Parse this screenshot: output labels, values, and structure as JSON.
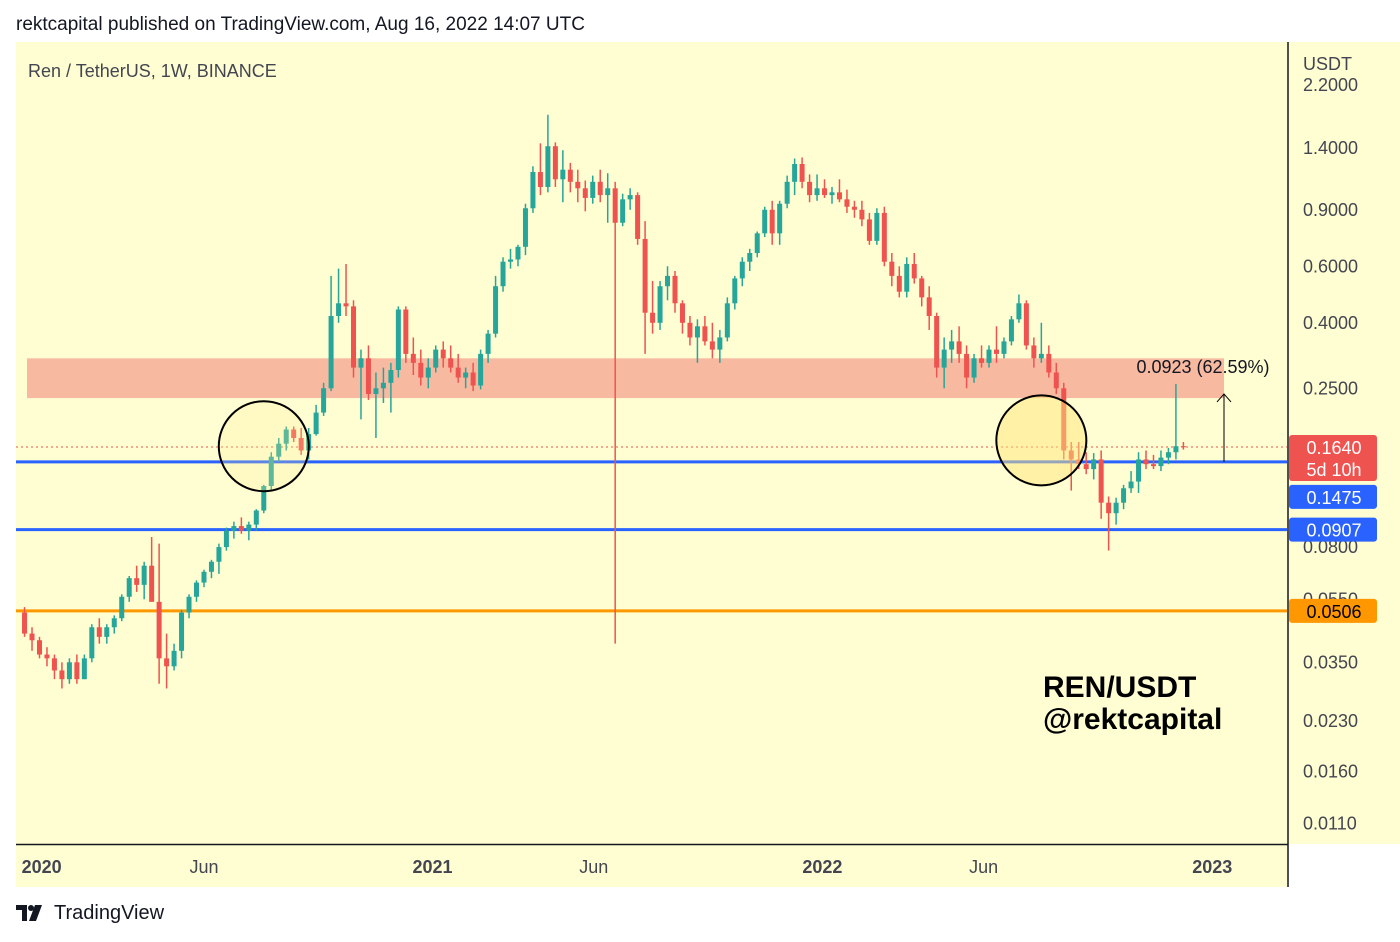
{
  "header": {
    "published": "rektcapital published on TradingView.com, Aug 16, 2022 14:07 UTC"
  },
  "footer": {
    "brand": "TradingView"
  },
  "colors": {
    "background": "#fffdd2",
    "up": "#26a69a",
    "down": "#ef5350",
    "zone": "#f8b9a1",
    "support": "#2962ff",
    "orange": "#ff9800",
    "price_label": "#ef5350"
  },
  "chart_data": {
    "type": "candlestick",
    "symbol_label": "Ren / TetherUS, 1W, BINANCE",
    "currency": "USDT",
    "y_scale": "log",
    "ylim": [
      0.0095,
      3.0
    ],
    "y_ticks": [
      "2.2000",
      "1.4000",
      "0.9000",
      "0.6000",
      "0.4000",
      "0.2500",
      "0.0800",
      "0.0550",
      "0.0350",
      "0.0230",
      "0.0160",
      "0.0110"
    ],
    "x_ticks": [
      {
        "label": "2020",
        "bold": true,
        "date": "2020-01-01"
      },
      {
        "label": "Jun",
        "bold": false,
        "date": "2020-06-01"
      },
      {
        "label": "2021",
        "bold": true,
        "date": "2021-01-01"
      },
      {
        "label": "Jun",
        "bold": false,
        "date": "2021-06-01"
      },
      {
        "label": "2022",
        "bold": true,
        "date": "2022-01-01"
      },
      {
        "label": "Jun",
        "bold": false,
        "date": "2022-06-01"
      },
      {
        "label": "2023",
        "bold": true,
        "date": "2023-01-01"
      }
    ],
    "first_candle_date": "2019-12-16",
    "candles": [
      [
        0.05,
        0.052,
        0.042,
        0.043
      ],
      [
        0.043,
        0.045,
        0.038,
        0.041
      ],
      [
        0.041,
        0.042,
        0.036,
        0.037
      ],
      [
        0.037,
        0.039,
        0.034,
        0.036
      ],
      [
        0.036,
        0.037,
        0.031,
        0.033
      ],
      [
        0.033,
        0.035,
        0.029,
        0.031
      ],
      [
        0.031,
        0.036,
        0.03,
        0.035
      ],
      [
        0.035,
        0.037,
        0.03,
        0.031
      ],
      [
        0.031,
        0.037,
        0.031,
        0.036
      ],
      [
        0.036,
        0.046,
        0.035,
        0.045
      ],
      [
        0.045,
        0.048,
        0.04,
        0.042
      ],
      [
        0.042,
        0.046,
        0.04,
        0.045
      ],
      [
        0.045,
        0.049,
        0.043,
        0.048
      ],
      [
        0.048,
        0.057,
        0.047,
        0.056
      ],
      [
        0.056,
        0.065,
        0.054,
        0.064
      ],
      [
        0.064,
        0.07,
        0.058,
        0.061
      ],
      [
        0.061,
        0.072,
        0.055,
        0.07
      ],
      [
        0.07,
        0.086,
        0.068,
        0.054
      ],
      [
        0.054,
        0.082,
        0.03,
        0.036
      ],
      [
        0.036,
        0.043,
        0.029,
        0.034
      ],
      [
        0.034,
        0.04,
        0.033,
        0.038
      ],
      [
        0.038,
        0.051,
        0.036,
        0.05
      ],
      [
        0.05,
        0.057,
        0.048,
        0.056
      ],
      [
        0.056,
        0.063,
        0.054,
        0.062
      ],
      [
        0.062,
        0.068,
        0.06,
        0.067
      ],
      [
        0.067,
        0.073,
        0.064,
        0.072
      ],
      [
        0.072,
        0.082,
        0.066,
        0.08
      ],
      [
        0.08,
        0.092,
        0.078,
        0.09
      ],
      [
        0.09,
        0.096,
        0.085,
        0.093
      ],
      [
        0.093,
        0.099,
        0.088,
        0.09
      ],
      [
        0.09,
        0.096,
        0.084,
        0.094
      ],
      [
        0.094,
        0.105,
        0.09,
        0.104
      ],
      [
        0.104,
        0.125,
        0.102,
        0.124
      ],
      [
        0.124,
        0.158,
        0.12,
        0.153
      ],
      [
        0.153,
        0.175,
        0.148,
        0.168
      ],
      [
        0.168,
        0.19,
        0.16,
        0.186
      ],
      [
        0.186,
        0.19,
        0.17,
        0.175
      ],
      [
        0.175,
        0.188,
        0.155,
        0.16
      ],
      [
        0.16,
        0.188,
        0.15,
        0.18
      ],
      [
        0.18,
        0.222,
        0.178,
        0.21
      ],
      [
        0.21,
        0.26,
        0.205,
        0.25
      ],
      [
        0.25,
        0.56,
        0.245,
        0.42
      ],
      [
        0.42,
        0.59,
        0.4,
        0.46
      ],
      [
        0.46,
        0.61,
        0.42,
        0.45
      ],
      [
        0.45,
        0.47,
        0.27,
        0.29
      ],
      [
        0.29,
        0.33,
        0.2,
        0.31
      ],
      [
        0.31,
        0.34,
        0.23,
        0.24
      ],
      [
        0.24,
        0.28,
        0.175,
        0.25
      ],
      [
        0.25,
        0.29,
        0.225,
        0.26
      ],
      [
        0.26,
        0.3,
        0.21,
        0.285
      ],
      [
        0.285,
        0.45,
        0.27,
        0.44
      ],
      [
        0.44,
        0.45,
        0.3,
        0.32
      ],
      [
        0.32,
        0.36,
        0.275,
        0.3
      ],
      [
        0.3,
        0.33,
        0.255,
        0.27
      ],
      [
        0.27,
        0.31,
        0.25,
        0.29
      ],
      [
        0.29,
        0.34,
        0.28,
        0.33
      ],
      [
        0.33,
        0.35,
        0.29,
        0.31
      ],
      [
        0.31,
        0.34,
        0.28,
        0.29
      ],
      [
        0.29,
        0.32,
        0.26,
        0.27
      ],
      [
        0.27,
        0.29,
        0.25,
        0.28
      ],
      [
        0.28,
        0.3,
        0.245,
        0.255
      ],
      [
        0.255,
        0.33,
        0.248,
        0.32
      ],
      [
        0.32,
        0.38,
        0.3,
        0.37
      ],
      [
        0.37,
        0.56,
        0.36,
        0.52
      ],
      [
        0.52,
        0.64,
        0.5,
        0.62
      ],
      [
        0.62,
        0.68,
        0.59,
        0.63
      ],
      [
        0.63,
        0.7,
        0.6,
        0.69
      ],
      [
        0.69,
        0.94,
        0.65,
        0.91
      ],
      [
        0.91,
        1.23,
        0.88,
        1.18
      ],
      [
        1.18,
        1.45,
        1.0,
        1.06
      ],
      [
        1.06,
        1.78,
        1.02,
        1.42
      ],
      [
        1.42,
        1.46,
        1.06,
        1.12
      ],
      [
        1.12,
        1.38,
        0.95,
        1.2
      ],
      [
        1.2,
        1.26,
        1.02,
        1.1
      ],
      [
        1.1,
        1.2,
        0.95,
        1.05
      ],
      [
        1.05,
        1.11,
        0.89,
        0.98
      ],
      [
        0.98,
        1.15,
        0.94,
        1.1
      ],
      [
        1.1,
        1.2,
        0.95,
        1.0
      ],
      [
        1.0,
        1.17,
        0.82,
        1.05
      ],
      [
        1.05,
        1.1,
        0.04,
        0.82
      ],
      [
        0.82,
        1.01,
        0.8,
        0.97
      ],
      [
        0.97,
        1.05,
        0.9,
        1.0
      ],
      [
        1.0,
        1.02,
        0.7,
        0.73
      ],
      [
        0.73,
        0.83,
        0.32,
        0.43
      ],
      [
        0.43,
        0.54,
        0.37,
        0.4
      ],
      [
        0.4,
        0.54,
        0.38,
        0.52
      ],
      [
        0.52,
        0.6,
        0.47,
        0.56
      ],
      [
        0.56,
        0.58,
        0.43,
        0.46
      ],
      [
        0.46,
        0.47,
        0.37,
        0.4
      ],
      [
        0.4,
        0.42,
        0.34,
        0.36
      ],
      [
        0.36,
        0.41,
        0.3,
        0.39
      ],
      [
        0.39,
        0.42,
        0.34,
        0.35
      ],
      [
        0.35,
        0.4,
        0.31,
        0.33
      ],
      [
        0.33,
        0.38,
        0.3,
        0.36
      ],
      [
        0.36,
        0.48,
        0.35,
        0.46
      ],
      [
        0.46,
        0.56,
        0.44,
        0.55
      ],
      [
        0.55,
        0.64,
        0.52,
        0.62
      ],
      [
        0.62,
        0.68,
        0.58,
        0.66
      ],
      [
        0.66,
        0.77,
        0.64,
        0.76
      ],
      [
        0.76,
        0.92,
        0.74,
        0.9
      ],
      [
        0.9,
        0.96,
        0.7,
        0.76
      ],
      [
        0.76,
        0.96,
        0.7,
        0.94
      ],
      [
        0.94,
        1.15,
        0.91,
        1.1
      ],
      [
        1.1,
        1.3,
        1.0,
        1.25
      ],
      [
        1.25,
        1.31,
        1.05,
        1.1
      ],
      [
        1.1,
        1.16,
        0.95,
        1.0
      ],
      [
        1.0,
        1.16,
        0.96,
        1.05
      ],
      [
        1.05,
        1.12,
        0.98,
        1.0
      ],
      [
        1.0,
        1.06,
        0.94,
        1.02
      ],
      [
        1.02,
        1.12,
        0.95,
        0.97
      ],
      [
        0.97,
        1.04,
        0.88,
        0.92
      ],
      [
        0.92,
        0.96,
        0.85,
        0.9
      ],
      [
        0.9,
        0.96,
        0.8,
        0.84
      ],
      [
        0.84,
        0.88,
        0.7,
        0.72
      ],
      [
        0.72,
        0.91,
        0.7,
        0.88
      ],
      [
        0.88,
        0.92,
        0.6,
        0.62
      ],
      [
        0.62,
        0.66,
        0.52,
        0.56
      ],
      [
        0.56,
        0.6,
        0.48,
        0.5
      ],
      [
        0.5,
        0.64,
        0.48,
        0.61
      ],
      [
        0.61,
        0.66,
        0.53,
        0.55
      ],
      [
        0.55,
        0.56,
        0.45,
        0.48
      ],
      [
        0.48,
        0.52,
        0.38,
        0.42
      ],
      [
        0.42,
        0.43,
        0.27,
        0.29
      ],
      [
        0.29,
        0.36,
        0.25,
        0.33
      ],
      [
        0.33,
        0.38,
        0.3,
        0.35
      ],
      [
        0.35,
        0.39,
        0.3,
        0.32
      ],
      [
        0.32,
        0.34,
        0.25,
        0.27
      ],
      [
        0.27,
        0.32,
        0.26,
        0.31
      ],
      [
        0.31,
        0.34,
        0.29,
        0.3
      ],
      [
        0.3,
        0.34,
        0.29,
        0.33
      ],
      [
        0.33,
        0.39,
        0.3,
        0.32
      ],
      [
        0.32,
        0.36,
        0.31,
        0.35
      ],
      [
        0.35,
        0.42,
        0.34,
        0.41
      ],
      [
        0.41,
        0.49,
        0.4,
        0.46
      ],
      [
        0.46,
        0.47,
        0.33,
        0.34
      ],
      [
        0.34,
        0.36,
        0.29,
        0.31
      ],
      [
        0.31,
        0.4,
        0.3,
        0.32
      ],
      [
        0.32,
        0.34,
        0.27,
        0.28
      ],
      [
        0.28,
        0.3,
        0.24,
        0.25
      ],
      [
        0.25,
        0.26,
        0.15,
        0.16
      ],
      [
        0.16,
        0.17,
        0.12,
        0.15
      ],
      [
        0.15,
        0.17,
        0.14,
        0.145
      ],
      [
        0.145,
        0.158,
        0.135,
        0.14
      ],
      [
        0.14,
        0.157,
        0.13,
        0.15
      ],
      [
        0.15,
        0.16,
        0.098,
        0.11
      ],
      [
        0.11,
        0.115,
        0.078,
        0.102
      ],
      [
        0.102,
        0.114,
        0.094,
        0.11
      ],
      [
        0.11,
        0.125,
        0.105,
        0.122
      ],
      [
        0.122,
        0.138,
        0.118,
        0.128
      ],
      [
        0.128,
        0.158,
        0.118,
        0.15
      ],
      [
        0.15,
        0.16,
        0.14,
        0.145
      ],
      [
        0.145,
        0.155,
        0.14,
        0.143
      ],
      [
        0.143,
        0.16,
        0.138,
        0.152
      ],
      [
        0.152,
        0.163,
        0.145,
        0.158
      ],
      [
        0.158,
        0.258,
        0.15,
        0.165
      ],
      [
        0.165,
        0.17,
        0.161,
        0.164
      ]
    ],
    "resistance_zone": [
      0.233,
      0.31
    ],
    "horizontal_lines": [
      {
        "value": 0.1475,
        "label": "0.1475",
        "color": "#2962ff"
      },
      {
        "value": 0.0907,
        "label": "0.0907",
        "color": "#2962ff"
      },
      {
        "value": 0.0506,
        "label": "0.0506",
        "color": "#ff9800"
      }
    ],
    "last_price": {
      "value": 0.164,
      "label": "0.1640",
      "countdown": "5d 10h"
    },
    "measure": {
      "label": "0.0923 (62.59%)",
      "from": 0.1475,
      "to": 0.24
    },
    "circles": [
      {
        "date": "2020-07-27",
        "price": 0.165
      },
      {
        "date": "2022-07-25",
        "price": 0.172
      }
    ],
    "watermark": [
      "REN/USDT",
      "@rektcapital"
    ]
  }
}
